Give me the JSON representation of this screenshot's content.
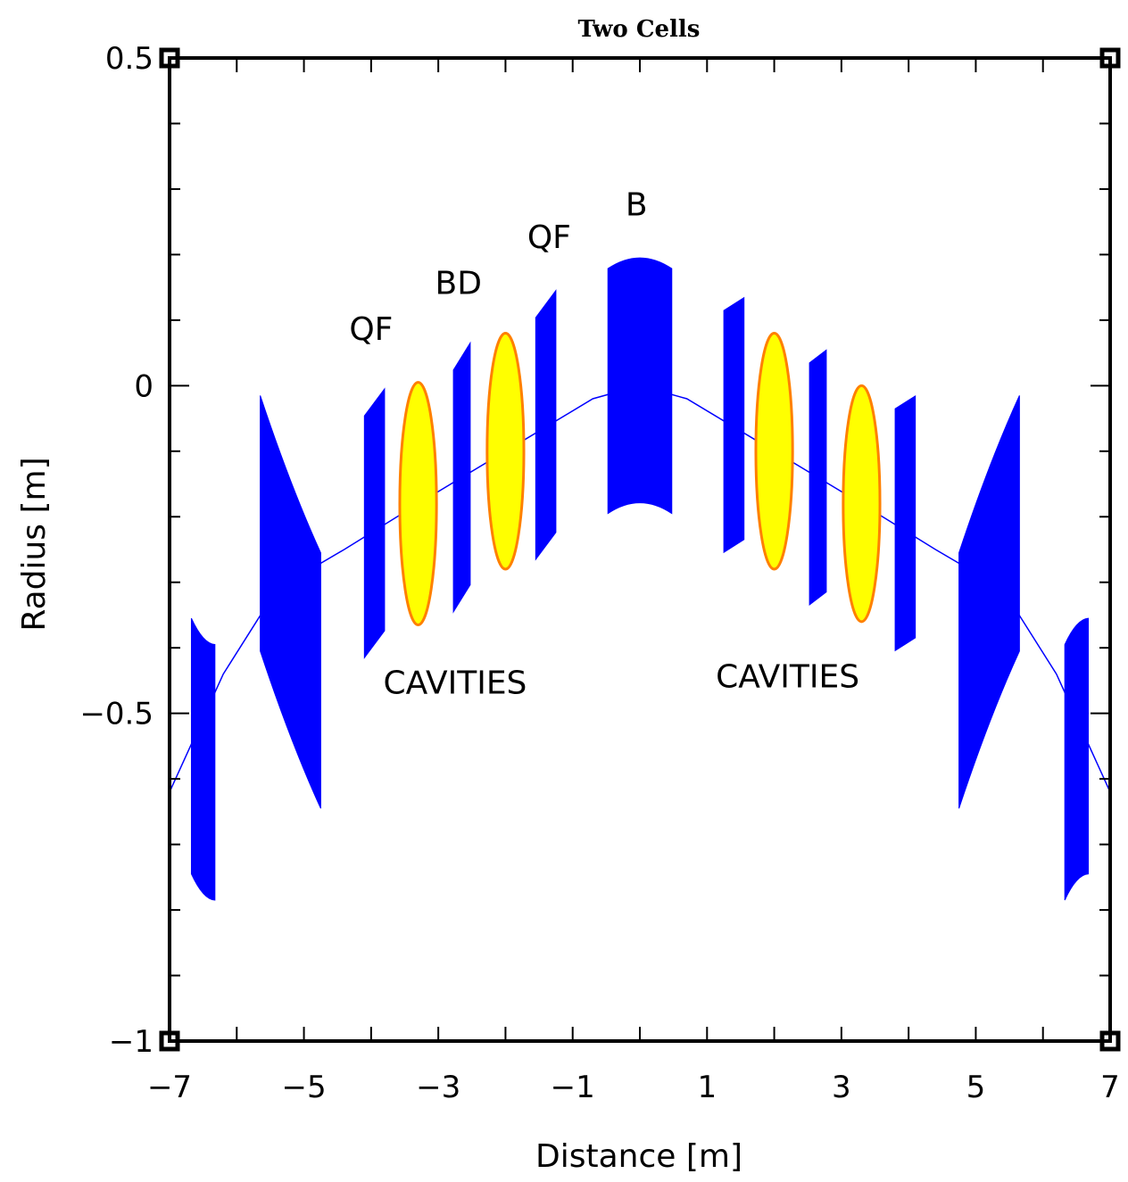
{
  "chart_data": {
    "type": "scatter",
    "title": "Two Cells",
    "xlabel": "Distance [m]",
    "ylabel": "Radius [m]",
    "xlim": [
      -7,
      7
    ],
    "ylim": [
      -1,
      0.5
    ],
    "xticks": [
      "−7",
      "−5",
      "−3",
      "−1",
      "1",
      "3",
      "5",
      "7"
    ],
    "xtick_values": [
      -7,
      -5,
      -3,
      -1,
      1,
      3,
      5,
      7
    ],
    "yticks": [
      "0.5",
      "0",
      "−0.5",
      "−1"
    ],
    "ytick_values": [
      0.5,
      0,
      -0.5,
      -1
    ],
    "grid": false,
    "colors": {
      "magnet": "#0000ff",
      "cavity_fill": "#ffff00",
      "cavity_edge": "#ff8000",
      "orbit": "#0000ff",
      "axes": "#000000"
    },
    "orbit": {
      "name": "orbit",
      "points": [
        [
          -7,
          -0.62
        ],
        [
          -6.2,
          -0.44
        ],
        [
          -5.4,
          -0.31
        ],
        [
          -4.4,
          -0.25
        ],
        [
          -3.3,
          -0.18
        ],
        [
          -2.0,
          -0.1
        ],
        [
          -0.7,
          -0.02
        ],
        [
          0,
          0.0
        ],
        [
          0.7,
          -0.02
        ],
        [
          2.0,
          -0.1
        ],
        [
          3.3,
          -0.18
        ],
        [
          4.4,
          -0.25
        ],
        [
          5.4,
          -0.31
        ],
        [
          6.2,
          -0.44
        ],
        [
          7,
          -0.62
        ]
      ]
    },
    "elements": [
      {
        "label": "",
        "kind": "bend",
        "x": -6.5,
        "width": 0.35,
        "y": -0.57,
        "height": 0.39,
        "tilt": -0.02
      },
      {
        "label": "",
        "kind": "bend",
        "x": -5.2,
        "width": 0.9,
        "y": -0.33,
        "height": 0.39,
        "tilt": -0.12
      },
      {
        "label": "QF",
        "kind": "quad",
        "x": -3.95,
        "width": 0.3,
        "y": -0.21,
        "height": 0.38,
        "tilt": 0.0
      },
      {
        "label": "",
        "kind": "cavity",
        "x": -3.3,
        "width": 0.6,
        "y": -0.18,
        "height": 0.37
      },
      {
        "label": "BD",
        "kind": "quad",
        "x": -2.65,
        "width": 0.25,
        "y": -0.14,
        "height": 0.38,
        "tilt": 0.0
      },
      {
        "label": "",
        "kind": "cavity",
        "x": -2.0,
        "width": 0.6,
        "y": -0.1,
        "height": 0.36
      },
      {
        "label": "QF",
        "kind": "quad",
        "x": -1.4,
        "width": 0.3,
        "y": -0.06,
        "height": 0.38,
        "tilt": 0.0
      },
      {
        "label": "B",
        "kind": "center-bend",
        "x": 0,
        "width": 0.95,
        "y": 0.0,
        "height": 0.39,
        "tilt": 0.0
      },
      {
        "label": "",
        "kind": "quad",
        "x": 1.4,
        "width": 0.3,
        "y": -0.06,
        "height": 0.38,
        "tilt": 0.0
      },
      {
        "label": "",
        "kind": "cavity",
        "x": 2.0,
        "width": 0.6,
        "y": -0.1,
        "height": 0.36
      },
      {
        "label": "",
        "kind": "quad",
        "x": 2.65,
        "width": 0.25,
        "y": -0.14,
        "height": 0.38,
        "tilt": 0.0
      },
      {
        "label": "",
        "kind": "cavity",
        "x": 3.3,
        "width": 0.6,
        "y": -0.18,
        "height": 0.36
      },
      {
        "label": "",
        "kind": "quad",
        "x": 3.95,
        "width": 0.3,
        "y": -0.21,
        "height": 0.38,
        "tilt": 0.0
      },
      {
        "label": "",
        "kind": "bend",
        "x": 5.2,
        "width": 0.9,
        "y": -0.33,
        "height": 0.39,
        "tilt": 0.12
      },
      {
        "label": "",
        "kind": "bend",
        "x": 6.5,
        "width": 0.35,
        "y": -0.57,
        "height": 0.39,
        "tilt": 0.02
      }
    ],
    "annotations": [
      {
        "text": "QF",
        "x": -4.0,
        "y": 0.07
      },
      {
        "text": "BD",
        "x": -2.7,
        "y": 0.14
      },
      {
        "text": "QF",
        "x": -1.35,
        "y": 0.21
      },
      {
        "text": "B",
        "x": -0.05,
        "y": 0.26
      },
      {
        "text": "CAVITIES",
        "x": -2.75,
        "y": -0.47
      },
      {
        "text": "CAVITIES",
        "x": 2.2,
        "y": -0.46
      }
    ]
  }
}
